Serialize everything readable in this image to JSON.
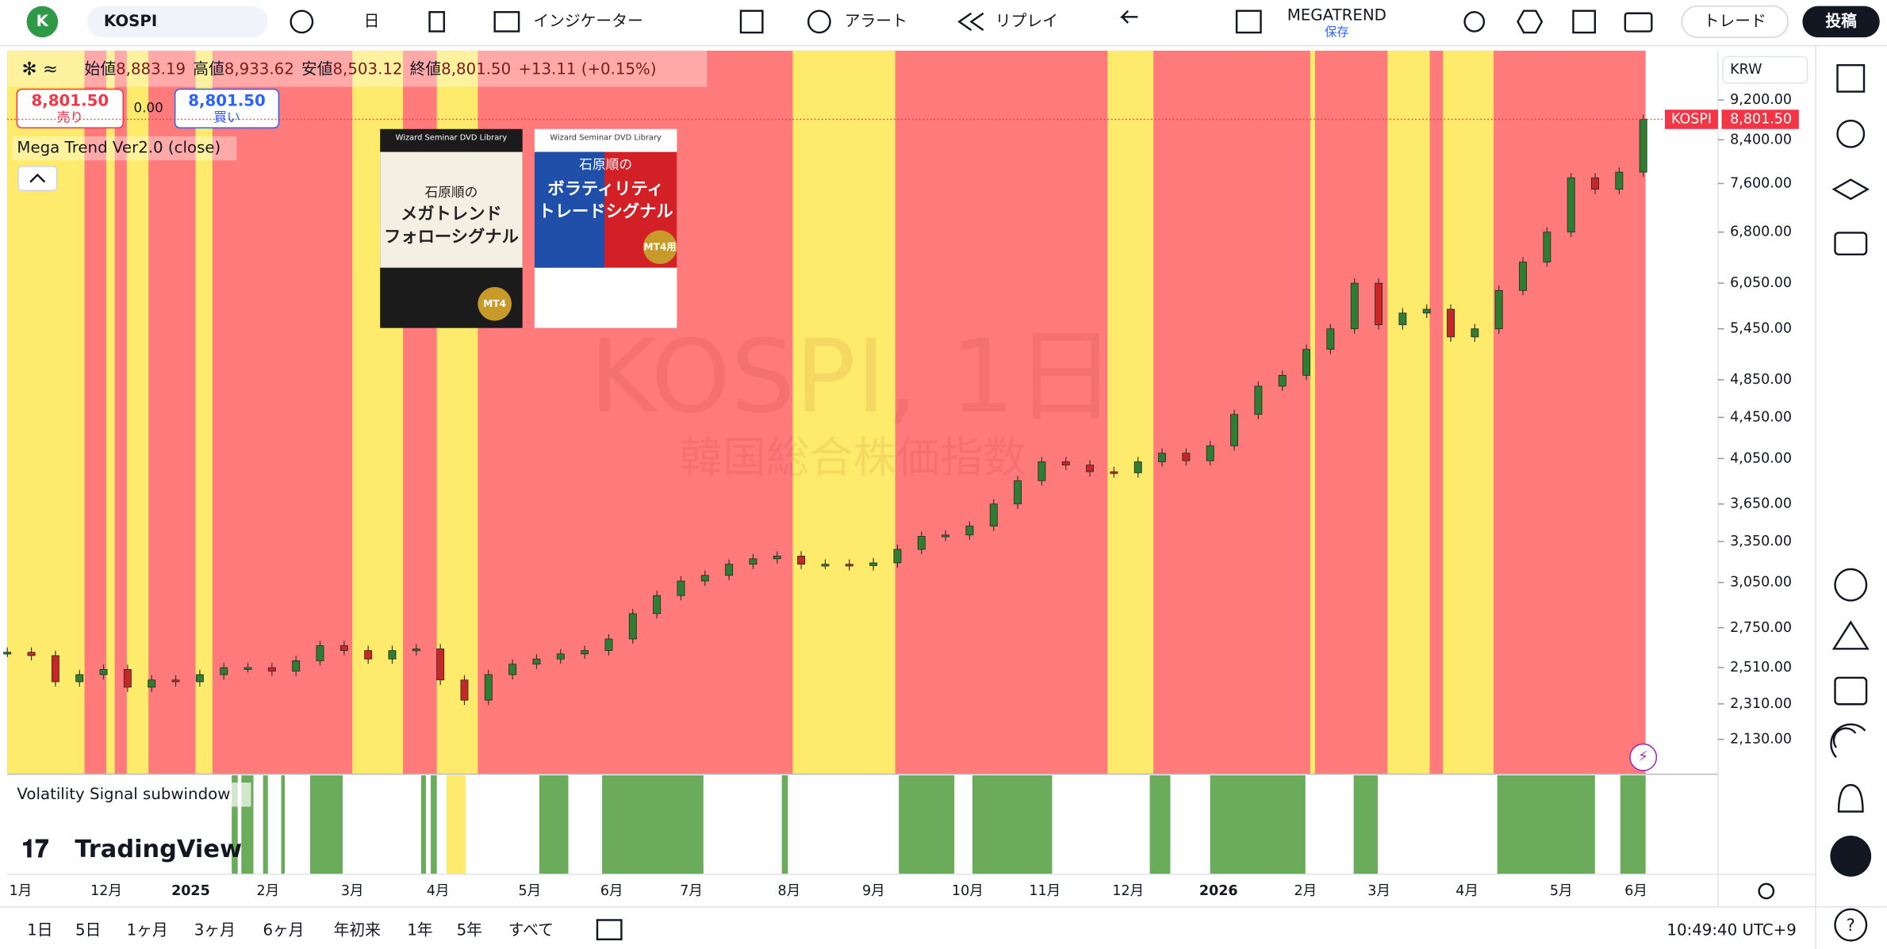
{
  "toolbar": {
    "avatar": "K",
    "symbol": "KOSPI",
    "interval": "日",
    "indicators": "インジケーター",
    "alert": "アラート",
    "replay": "リプレイ",
    "layout_name": "MEGATREND",
    "layout_status": "保存",
    "trade": "トレード",
    "publish": "投稿"
  },
  "legend": {
    "ohlc": [
      {
        "label": "始値",
        "value": "8,883.19"
      },
      {
        "label": "高値",
        "value": "8,933.62"
      },
      {
        "label": "安値",
        "value": "8,503.12"
      },
      {
        "label": "終値",
        "value": "8,801.50"
      }
    ],
    "change": "+13.11 (+0.15%)",
    "sell_price": "8,801.50",
    "sell_label": "売り",
    "spread": "0.00",
    "buy_price": "8,801.50",
    "buy_label": "買い",
    "indicator": "Mega Trend Ver2.0 (close)"
  },
  "books": [
    {
      "series": "Wizard Seminar DVD Library",
      "author": "石原順の",
      "title": [
        "メガトレンド",
        "フォローシグナル"
      ],
      "badge": "MT4"
    },
    {
      "series": "Wizard Seminar DVD Library",
      "author": "石原順の",
      "title": [
        "ボラティリティ",
        "トレードシグナル"
      ],
      "badge": "MT4用"
    }
  ],
  "watermark": {
    "title": "KOSPI, 1日",
    "subtitle": "韓国総合株価指数"
  },
  "chart": {
    "currency": "KRW",
    "symbol_label": "KOSPI",
    "last_price": {
      "value": 8801.5,
      "label": "8,801.50"
    },
    "ylim": [
      1967,
      10300
    ],
    "yticks": [
      {
        "value": 9200,
        "label": "9,200.00"
      },
      {
        "value": 8400,
        "label": "8,400.00"
      },
      {
        "value": 7600,
        "label": "7,600.00"
      },
      {
        "value": 6800,
        "label": "6,800.00"
      },
      {
        "value": 6050,
        "label": "6,050.00"
      },
      {
        "value": 5450,
        "label": "5,450.00"
      },
      {
        "value": 4850,
        "label": "4,850.00"
      },
      {
        "value": 4450,
        "label": "4,450.00"
      },
      {
        "value": 4050,
        "label": "4,050.00"
      },
      {
        "value": 3650,
        "label": "3,650.00"
      },
      {
        "value": 3350,
        "label": "3,350.00"
      },
      {
        "value": 3050,
        "label": "3,050.00"
      },
      {
        "value": 2750,
        "label": "2,750.00"
      },
      {
        "value": 2510,
        "label": "2,510.00"
      },
      {
        "value": 2310,
        "label": "2,310.00"
      },
      {
        "value": 2130,
        "label": "2,130.00"
      }
    ],
    "time_labels": [
      "1月",
      "12月",
      "2025",
      "2月",
      "3月",
      "4月",
      "5月",
      "6月",
      "7月",
      "8月",
      "9月",
      "10月",
      "11月",
      "12月",
      "2026",
      "2月",
      "3月",
      "4月",
      "5月",
      "6月"
    ],
    "closes": [
      2600,
      2580,
      2430,
      2470,
      2500,
      2400,
      2440,
      2430,
      2470,
      2510,
      2510,
      2490,
      2550,
      2640,
      2610,
      2560,
      2610,
      2620,
      2440,
      2330,
      2470,
      2530,
      2560,
      2590,
      2610,
      2680,
      2840,
      2960,
      3060,
      3100,
      3180,
      3220,
      3240,
      3180,
      3180,
      3170,
      3190,
      3290,
      3390,
      3400,
      3470,
      3650,
      3850,
      4020,
      3990,
      3930,
      3920,
      4020,
      4100,
      4030,
      4170,
      4480,
      4780,
      4900,
      5200,
      5450,
      6050,
      5500,
      5650,
      5700,
      5350,
      5450,
      5950,
      6350,
      6800,
      7700,
      7500,
      7800,
      8801.5
    ],
    "subwindow": "Volatility Signal subwindow",
    "brand": "TradingView"
  },
  "bottom": {
    "ranges": [
      "1日",
      "5日",
      "1ヶ月",
      "3ヶ月",
      "6ヶ月",
      "年初来",
      "1年",
      "5年",
      "すべて"
    ],
    "clock": "10:49:40 UTC+9"
  }
}
